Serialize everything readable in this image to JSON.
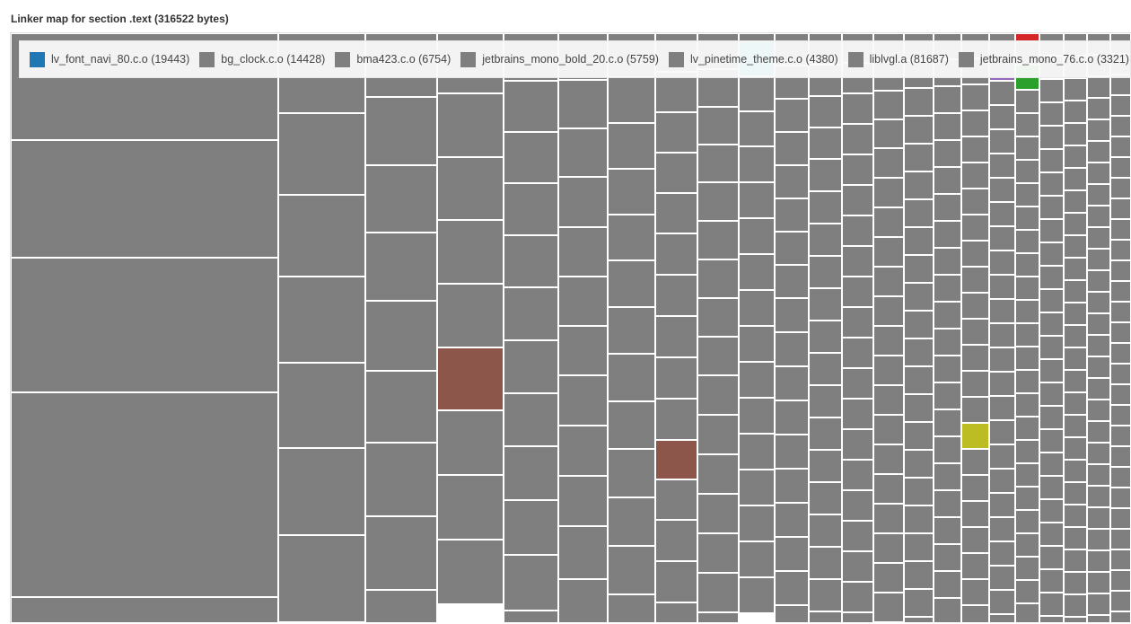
{
  "chart_data": {
    "type": "treemap",
    "title": "Linker map for section .text (316522 bytes)",
    "total_bytes": 316522,
    "legend": [
      {
        "name": "lv_font_navi_80.c.o",
        "label": "lv_font_navi_80.c.o (19443)",
        "value": 19443,
        "color": "#1f77b4"
      },
      {
        "name": "bg_clock.c.o",
        "label": "bg_clock.c.o (14428)",
        "value": 14428,
        "color": "#7f7f7f"
      },
      {
        "name": "bma423.c.o",
        "label": "bma423.c.o (6754)",
        "value": 6754,
        "color": "#7f7f7f"
      },
      {
        "name": "jetbrains_mono_bold_20.c.o",
        "label": "jetbrains_mono_bold_20.c.o (5759)",
        "value": 5759,
        "color": "#7f7f7f"
      },
      {
        "name": "lv_pinetime_theme.c.o",
        "label": "lv_pinetime_theme.c.o (4380)",
        "value": 4380,
        "color": "#7f7f7f"
      },
      {
        "name": "liblvgl.a",
        "label": "liblvgl.a (81687)",
        "value": 81687,
        "color": "#7f7f7f"
      },
      {
        "name": "jetbrains_mono_76.c.o",
        "label": "jetbrains_mono_76.c.o (3321)",
        "value": 3321,
        "color": "#7f7f7f"
      }
    ],
    "colors": {
      "default": "#7f7f7f",
      "brown": "#8c564b",
      "cyan": "#17becf",
      "olive": "#bcbd22",
      "green": "#2ca02c",
      "red": "#d62728",
      "purple": "#9467bd"
    }
  }
}
